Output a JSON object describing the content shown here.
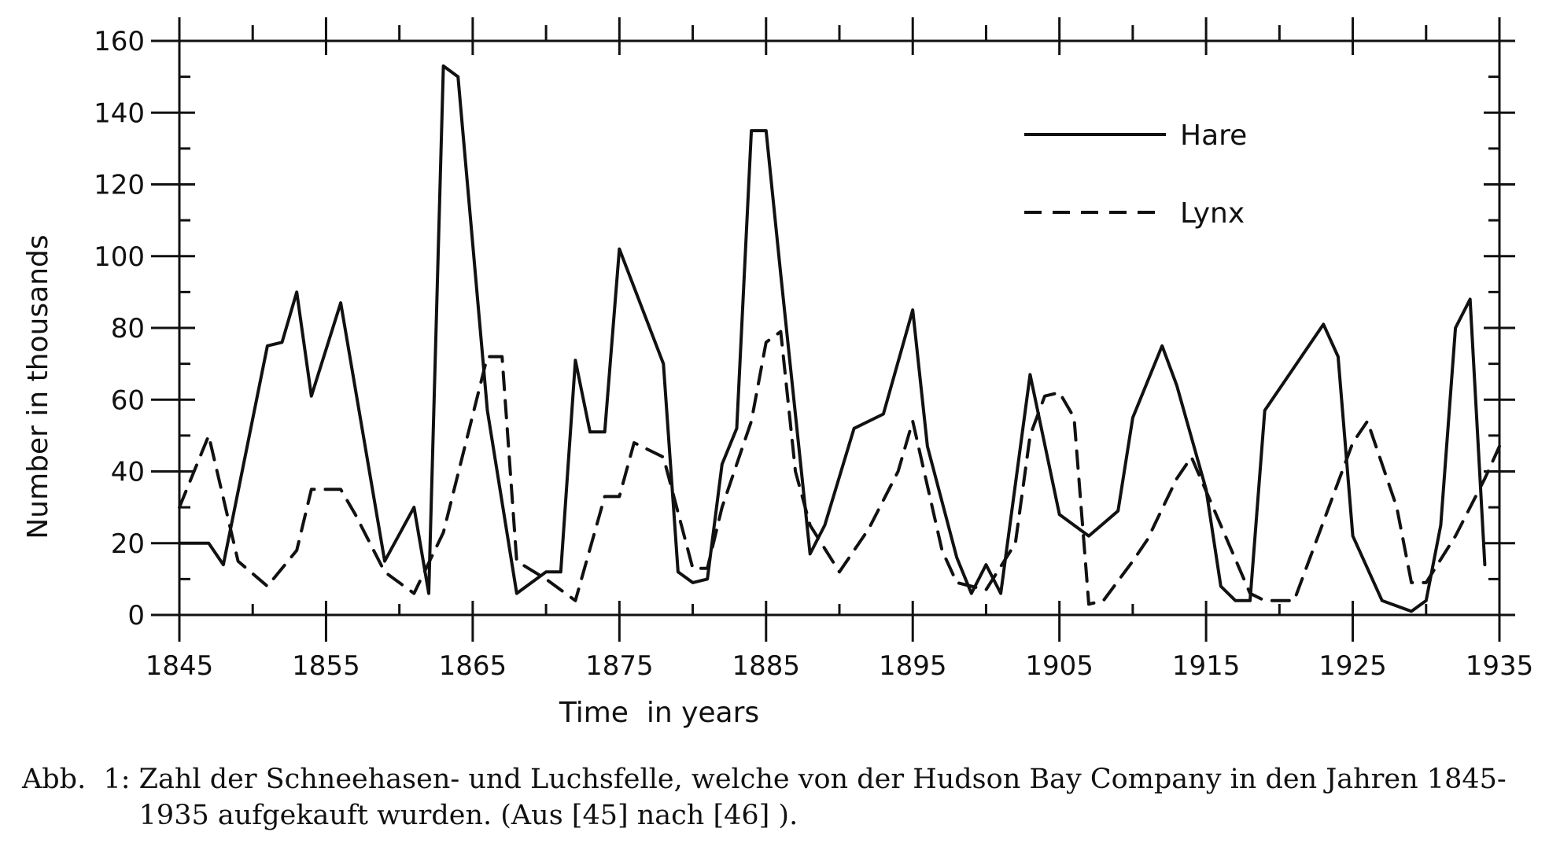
{
  "chart_data": {
    "type": "line",
    "xlabel": "Time  in years",
    "ylabel": "Number in thousands",
    "xlim": [
      1845,
      1935
    ],
    "ylim": [
      0,
      160
    ],
    "x_ticks": [
      "1845",
      "1855",
      "1865",
      "1875",
      "1885",
      "1895",
      "1905",
      "1915",
      "1925",
      "1935"
    ],
    "y_ticks": [
      "0",
      "20",
      "40",
      "60",
      "80",
      "100",
      "120",
      "140",
      "160"
    ],
    "legend_position": "top-right",
    "series": [
      {
        "name": "Hare",
        "style": "solid",
        "color": "#111111",
        "x": [
          1845,
          1847,
          1848,
          1851,
          1852,
          1853,
          1854,
          1856,
          1859,
          1861,
          1862,
          1863,
          1864,
          1866,
          1868,
          1870,
          1871,
          1872,
          1873,
          1874,
          1875,
          1878,
          1879,
          1880,
          1881,
          1882,
          1883,
          1884,
          1885,
          1886,
          1888,
          1889,
          1891,
          1893,
          1895,
          1896,
          1898,
          1899,
          1900,
          1901,
          1903,
          1905,
          1907,
          1909,
          1910,
          1912,
          1913,
          1915,
          1916,
          1917,
          1918,
          1919,
          1923,
          1924,
          1925,
          1927,
          1929,
          1930,
          1931,
          1932,
          1933,
          1934
        ],
        "values": [
          20,
          20,
          14,
          75,
          76,
          90,
          61,
          87,
          15,
          30,
          6,
          153,
          150,
          57,
          6,
          12,
          12,
          71,
          51,
          51,
          102,
          70,
          12,
          9,
          10,
          42,
          52,
          135,
          135,
          95,
          17,
          25,
          52,
          56,
          85,
          47,
          16,
          6,
          14,
          6,
          67,
          28,
          22,
          29,
          55,
          75,
          64,
          35,
          8,
          4,
          4,
          57,
          81,
          72,
          22,
          4,
          1,
          4,
          25,
          80,
          88,
          14
        ]
      },
      {
        "name": "Lynx",
        "style": "dashed",
        "color": "#111111",
        "x": [
          1845,
          1847,
          1849,
          1851,
          1853,
          1854,
          1856,
          1857,
          1859,
          1861,
          1863,
          1866,
          1867,
          1868,
          1870,
          1872,
          1874,
          1875,
          1876,
          1878,
          1880,
          1881,
          1882,
          1884,
          1885,
          1886,
          1887,
          1888,
          1890,
          1892,
          1894,
          1895,
          1897,
          1898,
          1899,
          1900,
          1902,
          1903,
          1904,
          1905,
          1906,
          1907,
          1908,
          1910,
          1911,
          1913,
          1914,
          1916,
          1918,
          1919,
          1921,
          1923,
          1925,
          1926,
          1928,
          1929,
          1930,
          1932,
          1934,
          1935
        ],
        "values": [
          30,
          50,
          15,
          8,
          18,
          35,
          35,
          28,
          12,
          6,
          23,
          72,
          72,
          15,
          10,
          4,
          33,
          33,
          48,
          44,
          13,
          13,
          30,
          54,
          76,
          79,
          40,
          25,
          12,
          24,
          40,
          54,
          18,
          9,
          8,
          7,
          20,
          50,
          61,
          62,
          55,
          3,
          4,
          15,
          21,
          38,
          44,
          25,
          6,
          4,
          4,
          26,
          48,
          54,
          30,
          9,
          9,
          22,
          38,
          47
        ]
      }
    ]
  },
  "caption": {
    "prefix": "Abb.  1: ",
    "text": "Zahl der Schneehasen- und Luchsfelle, welche von der Hudson Bay Company in den Jahren 1845-1935 aufgekauft wurden. (Aus [45] nach [46] )."
  }
}
